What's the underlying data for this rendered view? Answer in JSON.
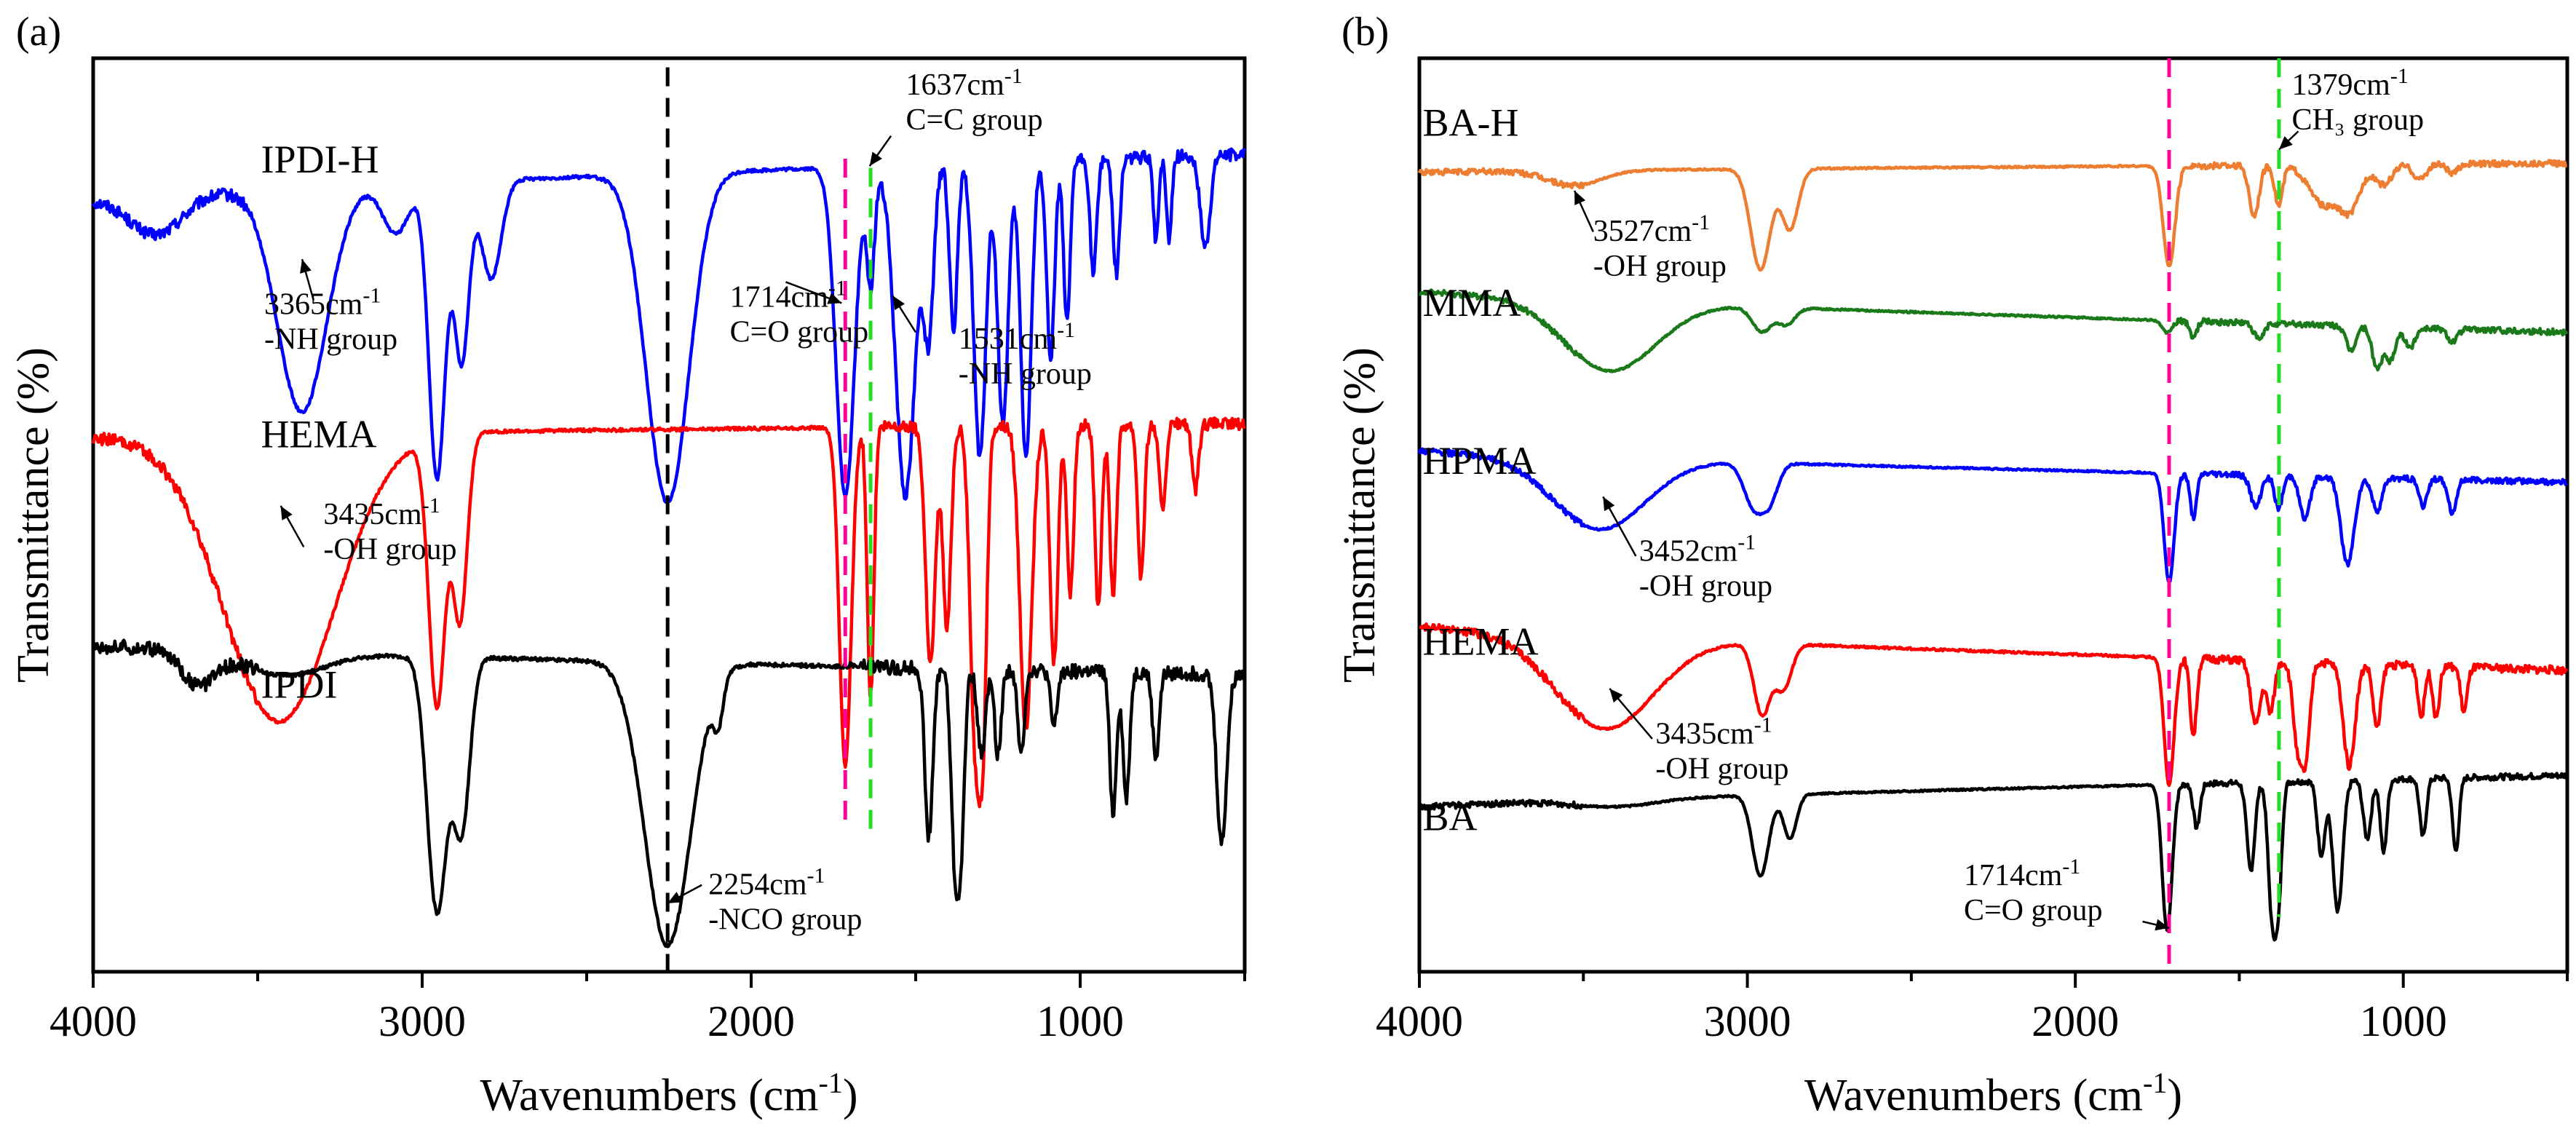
{
  "chart_data": [
    {
      "panel": "(a)",
      "type": "line",
      "xlabel": "Wavenumbers (cm",
      "xlabel_sup": "-1",
      "xlabel_end": ")",
      "ylabel": "Transmittance (%)",
      "xlim": [
        4000,
        500
      ],
      "xticks": [
        4000,
        3000,
        2000,
        1000
      ],
      "y_ticks_shown": false,
      "grid": false,
      "series": [
        {
          "name": "IPDI-H",
          "color": "#0000ff",
          "label_pos": [
            3490,
            0.875
          ],
          "baseline": 0.845,
          "scale": 0.36,
          "top_end": 0.895,
          "noise": 0.006,
          "bands": [
            [
              3810,
              80,
              0.12,
              -0.25
            ],
            [
              3365,
              75,
              0.68,
              0
            ],
            [
              3080,
              40,
              0.15,
              0
            ],
            [
              2955,
              25,
              0.9,
              0
            ],
            [
              2880,
              22,
              0.55,
              0
            ],
            [
              2790,
              30,
              0.3,
              0
            ],
            [
              2254,
              65,
              1.0,
              0
            ],
            [
              1714,
              28,
              1.0,
              0
            ],
            [
              1637,
              12,
              0.35,
              0
            ],
            [
              1531,
              30,
              1.0,
              0
            ],
            [
              1460,
              15,
              0.5,
              0
            ],
            [
              1385,
              12,
              0.5,
              0
            ],
            [
              1305,
              18,
              0.9,
              0
            ],
            [
              1235,
              16,
              0.8,
              0
            ],
            [
              1165,
              16,
              0.9,
              0
            ],
            [
              1090,
              12,
              0.6,
              0
            ],
            [
              1040,
              10,
              0.5,
              0
            ],
            [
              960,
              10,
              0.35,
              0
            ],
            [
              890,
              10,
              0.35,
              0
            ],
            [
              770,
              8,
              0.25,
              0
            ],
            [
              730,
              8,
              0.25,
              0
            ],
            [
              620,
              15,
              0.28,
              0
            ]
          ]
        },
        {
          "name": "HEMA",
          "color": "#ff0000",
          "label_pos": [
            3490,
            0.574
          ],
          "baseline": 0.585,
          "scale": 0.37,
          "top_end": 0.6,
          "noise": 0.006,
          "bands": [
            [
              3435,
              170,
              0.85,
              0
            ],
            [
              2955,
              25,
              0.8,
              0
            ],
            [
              2885,
              22,
              0.55,
              0
            ],
            [
              1714,
              18,
              1.0,
              0
            ],
            [
              1637,
              10,
              0.8,
              0
            ],
            [
              1455,
              15,
              0.7,
              0
            ],
            [
              1405,
              12,
              0.6,
              0
            ],
            [
              1320,
              15,
              0.9,
              0
            ],
            [
              1295,
              12,
              0.8,
              0
            ],
            [
              1165,
              18,
              0.9,
              0
            ],
            [
              1080,
              12,
              0.7,
              0
            ],
            [
              1030,
              10,
              0.5,
              0
            ],
            [
              945,
              10,
              0.55,
              0
            ],
            [
              900,
              10,
              0.5,
              0
            ],
            [
              815,
              10,
              0.45,
              0
            ],
            [
              750,
              10,
              0.25,
              0
            ],
            [
              650,
              10,
              0.2,
              0
            ]
          ]
        },
        {
          "name": "IPDI",
          "color": "#000000",
          "label_pos": [
            3490,
            0.3
          ],
          "baseline": 0.357,
          "scale": 0.31,
          "top_end": 0.325,
          "noise": 0.007,
          "bands": [
            [
              3680,
              50,
              0.12,
              0
            ],
            [
              3420,
              120,
              0.08,
              0
            ],
            [
              2955,
              30,
              0.9,
              0
            ],
            [
              2880,
              25,
              0.6,
              0
            ],
            [
              2254,
              70,
              1.0,
              0
            ],
            [
              2100,
              15,
              0.15,
              0
            ],
            [
              1460,
              12,
              0.6,
              0
            ],
            [
              1380,
              12,
              0.7,
              0
            ],
            [
              1360,
              10,
              0.5,
              0
            ],
            [
              1300,
              12,
              0.3,
              0
            ],
            [
              1250,
              10,
              0.3,
              0
            ],
            [
              1180,
              10,
              0.3,
              0
            ],
            [
              1080,
              10,
              0.2,
              0
            ],
            [
              900,
              10,
              0.5,
              0
            ],
            [
              860,
              10,
              0.45,
              0
            ],
            [
              770,
              10,
              0.3,
              0
            ],
            [
              570,
              15,
              0.6,
              0
            ]
          ]
        }
      ],
      "markers": [
        {
          "x": 2254,
          "color": "#000000",
          "y_top": 0.99,
          "y_bottom": 0.0
        },
        {
          "x": 1714,
          "color": "#ff0099",
          "y_top": 0.89,
          "y_bottom": 0.155
        },
        {
          "x": 1637,
          "color": "#22dd22",
          "y_top": 0.88,
          "y_bottom": 0.155
        }
      ],
      "annotations": [
        {
          "lines": [
            "3365cm",
            "-NH group"
          ],
          "sup": "-1",
          "text_pos": [
            3480,
            0.72
          ],
          "tip": [
            3365,
            0.78
          ],
          "tail": [
            3330,
            0.735
          ]
        },
        {
          "lines": [
            "1714cm",
            "C=O group"
          ],
          "sup": "-1",
          "text_pos": [
            2065,
            0.728
          ],
          "tip": [
            1725,
            0.732
          ],
          "tail": [
            1895,
            0.755
          ]
        },
        {
          "lines": [
            "1637cm",
            "C=C group"
          ],
          "sup": "-1",
          "text_pos": [
            1530,
            0.96
          ],
          "tip": [
            1640,
            0.882
          ],
          "tail": [
            1575,
            0.915
          ]
        },
        {
          "lines": [
            "1531cm",
            "-NH group"
          ],
          "sup": "-1",
          "text_pos": [
            1370,
            0.682
          ],
          "tip": [
            1570,
            0.74
          ],
          "tail": [
            1500,
            0.7
          ]
        },
        {
          "lines": [
            "3435cm",
            "-OH group"
          ],
          "sup": "-1",
          "text_pos": [
            3300,
            0.49
          ],
          "tip": [
            3430,
            0.51
          ],
          "tail": [
            3360,
            0.465
          ]
        },
        {
          "lines": [
            "2254cm",
            "-NCO group"
          ],
          "sup": "-1",
          "text_pos": [
            2130,
            0.085
          ],
          "tip": [
            2254,
            0.075
          ],
          "tail": [
            2150,
            0.095
          ]
        }
      ]
    },
    {
      "panel": "(b)",
      "type": "line",
      "xlabel": "Wavenumbers (cm",
      "xlabel_sup": "-1",
      "xlabel_end": ")",
      "ylabel": "Transmittance (%)",
      "xlim": [
        4000,
        500
      ],
      "xticks": [
        4000,
        3000,
        2000,
        1000
      ],
      "y_ticks_shown": false,
      "grid": false,
      "series": [
        {
          "name": "BA-H",
          "color": "#ed7d31",
          "label_pos": [
            3990,
            0.915
          ],
          "baseline": 0.875,
          "scale": 0.11,
          "top_end": 0.885,
          "noise": 0.003,
          "bands": [
            [
              3527,
              80,
              0.15,
              0
            ],
            [
              2960,
              30,
              1.0,
              0
            ],
            [
              2870,
              25,
              0.6,
              0
            ],
            [
              1714,
              18,
              1.0,
              0
            ],
            [
              1455,
              15,
              0.5,
              0
            ],
            [
              1380,
              12,
              0.4,
              0
            ],
            [
              1240,
              45,
              0.4,
              0
            ],
            [
              1160,
              30,
              0.4,
              0
            ],
            [
              1060,
              25,
              0.2,
              0
            ],
            [
              950,
              20,
              0.15,
              0
            ],
            [
              850,
              15,
              0.1,
              0
            ]
          ]
        },
        {
          "name": "MMA",
          "color": "#1a7a1a",
          "label_pos": [
            3990,
            0.718
          ],
          "baseline": 0.745,
          "scale": 0.09,
          "top_end": 0.7,
          "noise": 0.003,
          "bands": [
            [
              3420,
              140,
              0.85,
              0
            ],
            [
              2955,
              30,
              0.3,
              0
            ],
            [
              2880,
              25,
              0.2,
              0
            ],
            [
              1720,
              15,
              0.15,
              0
            ],
            [
              1640,
              10,
              0.2,
              0
            ],
            [
              1440,
              15,
              0.2,
              0
            ],
            [
              1160,
              15,
              0.3,
              0
            ],
            [
              1080,
              15,
              0.5,
              0
            ],
            [
              1040,
              15,
              0.4,
              0
            ],
            [
              980,
              15,
              0.25,
              0
            ],
            [
              850,
              15,
              0.15,
              0
            ]
          ]
        },
        {
          "name": "HPMA",
          "color": "#0000ff",
          "label_pos": [
            3990,
            0.545
          ],
          "baseline": 0.57,
          "scale": 0.12,
          "top_end": 0.536,
          "noise": 0.003,
          "bands": [
            [
              3452,
              140,
              0.65,
              0
            ],
            [
              2980,
              30,
              0.4,
              0
            ],
            [
              2930,
              25,
              0.3,
              0
            ],
            [
              1714,
              15,
              1.0,
              0
            ],
            [
              1640,
              10,
              0.4,
              0
            ],
            [
              1450,
              15,
              0.3,
              0
            ],
            [
              1380,
              12,
              0.3,
              0
            ],
            [
              1300,
              15,
              0.4,
              0
            ],
            [
              1170,
              20,
              0.8,
              0
            ],
            [
              1080,
              15,
              0.3,
              0
            ],
            [
              940,
              12,
              0.25,
              0
            ],
            [
              850,
              12,
              0.3,
              0
            ]
          ]
        },
        {
          "name": "HEMA",
          "color": "#ff0000",
          "label_pos": [
            3990,
            0.347
          ],
          "baseline": 0.378,
          "scale": 0.14,
          "top_end": 0.33,
          "noise": 0.004,
          "bands": [
            [
              3435,
              150,
              0.72,
              0
            ],
            [
              2955,
              25,
              0.55,
              0
            ],
            [
              2890,
              25,
              0.35,
              0
            ],
            [
              1714,
              15,
              1.0,
              0
            ],
            [
              1640,
              10,
              0.6,
              0
            ],
            [
              1450,
              15,
              0.5,
              0
            ],
            [
              1405,
              12,
              0.4,
              0
            ],
            [
              1320,
              15,
              0.7,
              0
            ],
            [
              1295,
              12,
              0.6,
              0
            ],
            [
              1165,
              18,
              0.8,
              0
            ],
            [
              1080,
              12,
              0.5,
              0
            ],
            [
              945,
              10,
              0.4,
              0
            ],
            [
              900,
              10,
              0.4,
              0
            ],
            [
              815,
              10,
              0.35,
              0
            ]
          ]
        },
        {
          "name": "BA",
          "color": "#000000",
          "label_pos": [
            3990,
            0.155
          ],
          "baseline": 0.18,
          "scale": 0.16,
          "top_end": 0.215,
          "noise": 0.003,
          "bands": [
            [
              3400,
              120,
              0.05,
              0
            ],
            [
              2960,
              25,
              0.55,
              0
            ],
            [
              2870,
              20,
              0.3,
              0
            ],
            [
              1720,
              15,
              1.0,
              0
            ],
            [
              1630,
              10,
              0.3,
              0
            ],
            [
              1465,
              12,
              0.6,
              0
            ],
            [
              1400,
              12,
              0.9,
              0
            ],
            [
              1380,
              10,
              0.7,
              0
            ],
            [
              1250,
              12,
              0.5,
              0
            ],
            [
              1200,
              15,
              0.9,
              0
            ],
            [
              1110,
              12,
              0.4,
              0
            ],
            [
              1060,
              10,
              0.5,
              0
            ],
            [
              940,
              10,
              0.4,
              0
            ],
            [
              840,
              10,
              0.5,
              0
            ]
          ]
        }
      ],
      "markers": [
        {
          "x": 1714,
          "color": "#ff0099",
          "y_top": 1.0,
          "y_bottom": 0.0
        },
        {
          "x": 1379,
          "color": "#22dd22",
          "y_top": 1.0,
          "y_bottom": 0.06
        }
      ],
      "annotations": [
        {
          "lines": [
            "1379cm",
            "CH₃ group"
          ],
          "sup": "-1",
          "text_pos": [
            1340,
            0.96
          ],
          "tip": [
            1379,
            0.9
          ],
          "tail": [
            1320,
            0.92
          ]
        },
        {
          "lines": [
            "3527cm",
            "-OH group"
          ],
          "sup": "-1",
          "text_pos": [
            3470,
            0.8
          ],
          "tip": [
            3527,
            0.855
          ],
          "tail": [
            3470,
            0.81
          ]
        },
        {
          "lines": [
            "3452cm",
            "-OH group"
          ],
          "sup": "-1",
          "text_pos": [
            3330,
            0.45
          ],
          "tip": [
            3440,
            0.52
          ],
          "tail": [
            3340,
            0.455
          ]
        },
        {
          "lines": [
            "3435cm",
            "-OH group"
          ],
          "sup": "-1",
          "text_pos": [
            3280,
            0.25
          ],
          "tip": [
            3420,
            0.31
          ],
          "tail": [
            3290,
            0.255
          ]
        },
        {
          "lines": [
            "1714cm",
            "C=O group"
          ],
          "sup": "-1",
          "text_pos": [
            2340,
            0.095
          ],
          "tip": [
            1714,
            0.048
          ],
          "tail": [
            1795,
            0.055
          ]
        }
      ]
    }
  ]
}
